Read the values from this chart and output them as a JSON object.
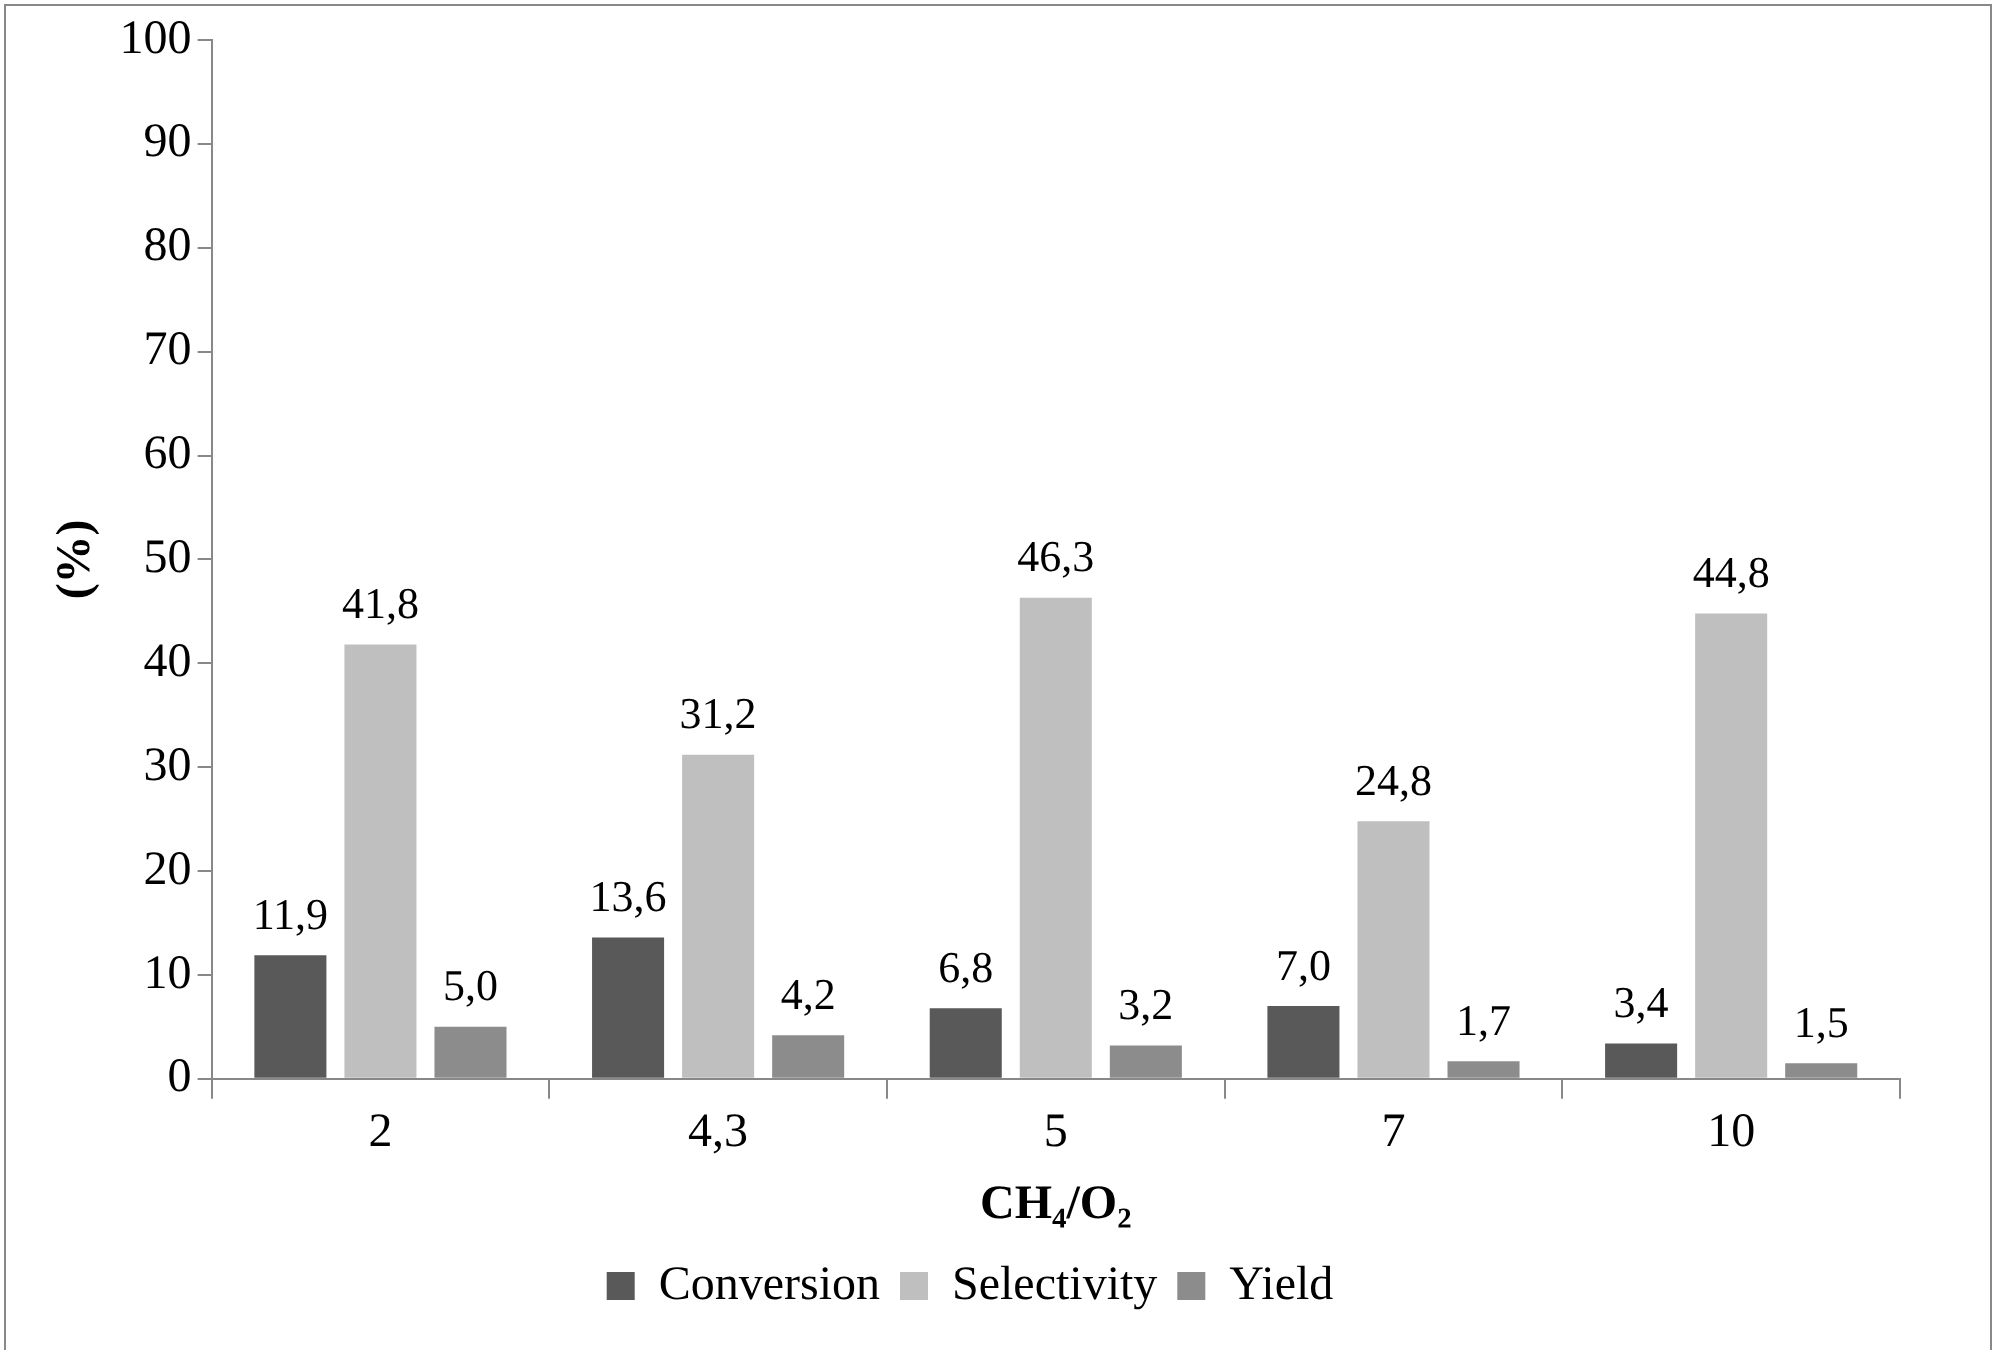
{
  "chart_data": {
    "type": "bar",
    "xlabel": "CH₄/O₂",
    "ylabel": "(%)",
    "categories": [
      "2",
      "4,3",
      "5",
      "7",
      "10"
    ],
    "series": [
      {
        "name": "Conversion",
        "color": "#595959",
        "values": [
          11.9,
          13.6,
          6.8,
          7.0,
          3.4
        ],
        "value_labels": [
          "11,9",
          "13,6",
          "6,8",
          "7,0",
          "3,4"
        ]
      },
      {
        "name": "Selectivity",
        "color": "#bfbfbf",
        "values": [
          41.8,
          31.2,
          46.3,
          24.8,
          44.8
        ],
        "value_labels": [
          "41,8",
          "31,2",
          "46,3",
          "24,8",
          "44,8"
        ]
      },
      {
        "name": "Yield",
        "color": "#8c8c8c",
        "values": [
          5.0,
          4.2,
          3.2,
          1.7,
          1.5
        ],
        "value_labels": [
          "5,0",
          "4,2",
          "3,2",
          "1,7",
          "1,5"
        ]
      }
    ],
    "ylim": [
      0,
      100
    ],
    "yticks": [
      0,
      10,
      20,
      30,
      40,
      50,
      60,
      70,
      80,
      90,
      100
    ],
    "grid": false,
    "legend": "bottom"
  }
}
